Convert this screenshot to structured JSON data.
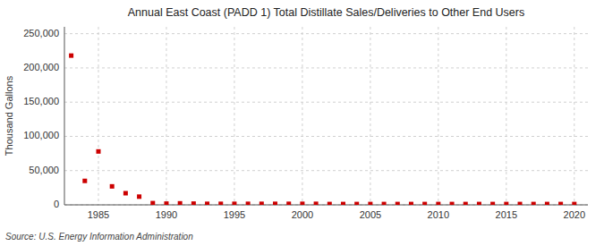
{
  "chart_data": {
    "type": "scatter",
    "title": "Annual East Coast (PADD 1) Total Distillate Sales/Deliveries to Other End Users",
    "y_label": "Thousand Gallons",
    "source": "Source: U.S. Energy Information Administration",
    "color": "#cc0000",
    "marker": "square",
    "grid": true,
    "xlim": [
      1982.5,
      2021
    ],
    "ylim": [
      0,
      260000
    ],
    "xticks": [
      1985,
      1990,
      1995,
      2000,
      2005,
      2010,
      2015,
      2020
    ],
    "yticks": [
      0,
      {
        "value": 50000,
        "label": "50,000"
      },
      {
        "value": 100000,
        "label": "100,000"
      },
      {
        "value": 150000,
        "label": "150,000"
      },
      {
        "value": 200000,
        "label": "200,000"
      },
      {
        "value": 250000,
        "label": "250,000"
      }
    ],
    "x": [
      1983,
      1984,
      1985,
      1986,
      1987,
      1988,
      1989,
      1990,
      1991,
      1992,
      1993,
      1994,
      1995,
      1996,
      1997,
      1998,
      1999,
      2000,
      2001,
      2002,
      2003,
      2004,
      2005,
      2006,
      2007,
      2008,
      2009,
      2010,
      2011,
      2012,
      2013,
      2014,
      2015,
      2016,
      2017,
      2018,
      2019,
      2020
    ],
    "values": [
      218000,
      35000,
      78000,
      27000,
      17000,
      12000,
      2500,
      1800,
      2200,
      1800,
      1500,
      1500,
      1500,
      1500,
      1500,
      1500,
      1500,
      1500,
      1500,
      1200,
      1200,
      1200,
      1200,
      1200,
      1200,
      1200,
      1200,
      1200,
      1200,
      1200,
      1200,
      1200,
      1200,
      1200,
      1200,
      1200,
      1200,
      1200
    ]
  }
}
